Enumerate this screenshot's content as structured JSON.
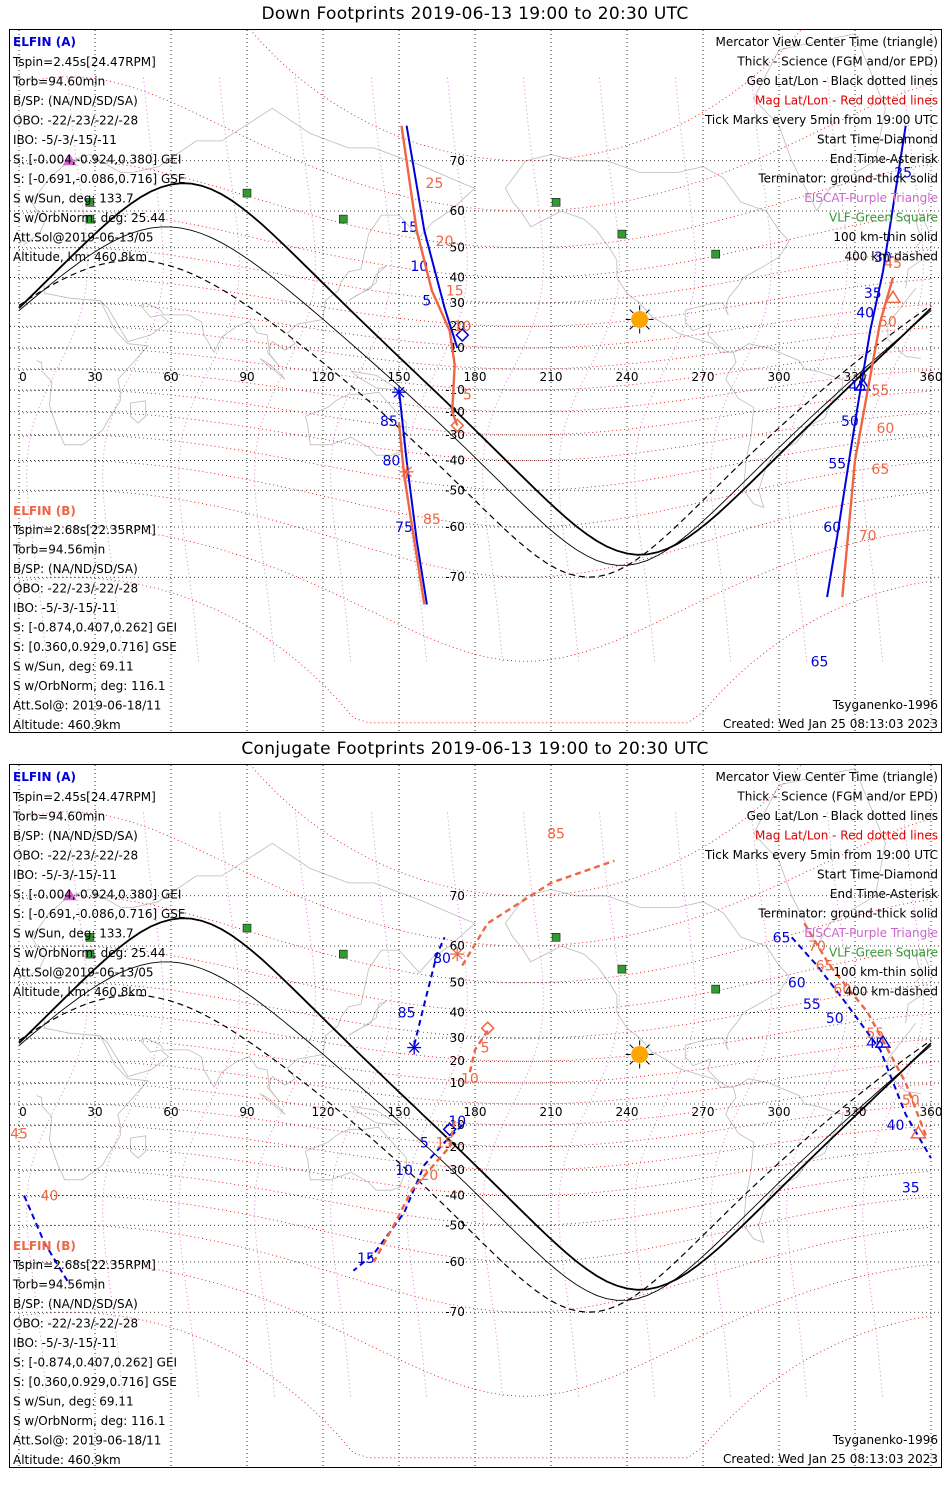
{
  "colors": {
    "elfin_a": "#0000dd",
    "elfin_b": "#ee6644",
    "geo_grid": "#000000",
    "mag_grid": "#dd0000",
    "eiscat": "#cc66cc",
    "vlf": "#339933",
    "sun": "#ffa500",
    "coast": "#bbbbbb"
  },
  "panels": [
    {
      "title": "Down Footprints 2019-06-13 19:00 to 20:30 UTC",
      "elfin_a": {
        "name": "ELFIN (A)",
        "lines": [
          "Tspin=2.45s[24.47RPM]",
          "Torb=94.60min",
          "B/SP: (NA/ND/SD/SA)",
          "OBO: -22/-23/-22/-28",
          "IBO: -5/-3/-15/-11",
          "S: [-0.004,-0.924,0.380] GEI",
          "S: [-0.691,-0.086,0.716] GSE",
          "S w/Sun, deg: 133.7",
          "S w/OrbNorm, deg: 25.44",
          "Att.Sol@2019-06-13/05",
          "Altitude, km: 460.8km"
        ]
      },
      "elfin_b": {
        "name": "ELFIN (B)",
        "lines": [
          "Tspin=2.68s[22.35RPM]",
          "Torb=94.56min",
          "B/SP: (NA/ND/SD/SA)",
          "OBO: -22/-23/-22/-28",
          "IBO: -5/-3/-15/-11",
          "S: [-0.874,0.407,0.262] GEI",
          "S: [0.360,0.929,0.716] GSE",
          "S w/Sun, deg: 69.11",
          "S w/OrbNorm, deg: 116.1",
          "Att.Sol@: 2019-06-18/11",
          "Altitude: 460.9km"
        ]
      },
      "legend": [
        {
          "text": "Mercator View Center Time (triangle)",
          "color": "#000000"
        },
        {
          "text": "Thick - Science (FGM and/or EPD)",
          "color": "#000000"
        },
        {
          "text": "Geo Lat/Lon - Black dotted lines",
          "color": "#000000"
        },
        {
          "text": "Mag Lat/Lon - Red dotted lines",
          "color": "#dd0000"
        },
        {
          "text": "Tick Marks every 5min from 19:00 UTC",
          "color": "#000000"
        },
        {
          "text": "Start Time-Diamond",
          "color": "#000000"
        },
        {
          "text": "End Time-Asterisk",
          "color": "#000000"
        },
        {
          "text": "Terminator: ground-thick solid",
          "color": "#000000"
        },
        {
          "text": "EISCAT-Purple Triangle",
          "color": "#cc66cc"
        },
        {
          "text": "VLF-Green Square",
          "color": "#339933"
        },
        {
          "text": "100 km-thin solid",
          "color": "#000000"
        },
        {
          "text": "400 km-dashed",
          "color": "#000000"
        }
      ],
      "model": "Tsyganenko-1996",
      "created": "Created: Wed Jan 25 08:13:03 2023"
    },
    {
      "title": "Conjugate Footprints 2019-06-13 19:00 to 20:30 UTC",
      "elfin_a": {
        "name": "ELFIN (A)",
        "lines": [
          "Tspin=2.45s[24.47RPM]",
          "Torb=94.60min",
          "B/SP: (NA/ND/SD/SA)",
          "OBO: -22/-23/-22/-28",
          "IBO: -5/-3/-15/-11",
          "S: [-0.004,-0.924,0.380] GEI",
          "S: [-0.691,-0.086,0.716] GSE",
          "S w/Sun, deg: 133.7",
          "S w/OrbNorm, deg: 25.44",
          "Att.Sol@2019-06-13/05",
          "Altitude, km: 460.8km"
        ]
      },
      "elfin_b": {
        "name": "ELFIN (B)",
        "lines": [
          "Tspin=2.68s[22.35RPM]",
          "Torb=94.56min",
          "B/SP: (NA/ND/SD/SA)",
          "OBO: -22/-23/-22/-28",
          "IBO: -5/-3/-15/-11",
          "S: [-0.874,0.407,0.262] GEI",
          "S: [0.360,0.929,0.716] GSE",
          "S w/Sun, deg: 69.11",
          "S w/OrbNorm, deg: 116.1",
          "Att.Sol@: 2019-06-18/11",
          "Altitude: 460.9km"
        ]
      },
      "legend": [
        {
          "text": "Mercator View Center Time (triangle)",
          "color": "#000000"
        },
        {
          "text": "Thick - Science (FGM and/or EPD)",
          "color": "#000000"
        },
        {
          "text": "Geo Lat/Lon - Black dotted lines",
          "color": "#000000"
        },
        {
          "text": "Mag Lat/Lon - Red dotted lines",
          "color": "#dd0000"
        },
        {
          "text": "Tick Marks every 5min from 19:00 UTC",
          "color": "#000000"
        },
        {
          "text": "Start Time-Diamond",
          "color": "#000000"
        },
        {
          "text": "End Time-Asterisk",
          "color": "#000000"
        },
        {
          "text": "Terminator: ground-thick solid",
          "color": "#000000"
        },
        {
          "text": "EISCAT-Purple Triangle",
          "color": "#cc66cc"
        },
        {
          "text": "VLF-Green Square",
          "color": "#339933"
        },
        {
          "text": "100 km-thin solid",
          "color": "#000000"
        },
        {
          "text": "400 km-dashed",
          "color": "#000000"
        }
      ],
      "model": "Tsyganenko-1996",
      "created": "Created: Wed Jan 25 08:13:03 2023"
    }
  ],
  "chart_data": [
    {
      "type": "scatter",
      "title": "Down Footprints 2019-06-13 19:00 to 20:30 UTC",
      "xlim": [
        0,
        360
      ],
      "lon_ticks": [
        0,
        30,
        60,
        90,
        120,
        150,
        180,
        210,
        240,
        270,
        300,
        330,
        360
      ],
      "lat_ticks": [
        70,
        60,
        50,
        40,
        30,
        20,
        10,
        -10,
        -20,
        -30,
        -40,
        -50,
        -60,
        -70
      ],
      "grid": true,
      "series": [
        {
          "name": "ELFIN (A)",
          "segments": [
            {
              "points": [
                [
                  350,
                  75
                ],
                [
                  341,
                  42
                ],
                [
                  336,
                  18
                ],
                [
                  331,
                  -18
                ],
                [
                  328,
                  -38
                ],
                [
                  323,
                  -62
                ],
                [
                  319,
                  -73
                ]
              ]
            },
            {
              "points": [
                [
                  153,
                  75
                ],
                [
                  160,
                  55
                ],
                [
                  168,
                  28
                ],
                [
                  173,
                  10
                ]
              ]
            },
            {
              "points": [
                [
                  150,
                  -10
                ],
                [
                  153,
                  -40
                ],
                [
                  157,
                  -63
                ],
                [
                  161,
                  -74
                ]
              ]
            }
          ],
          "tick_labels": [
            {
              "text": "25",
              "lon": 349,
              "lat": 68
            },
            {
              "text": "30",
              "lon": 341,
              "lat": 47
            },
            {
              "text": "35",
              "lon": 337,
              "lat": 34
            },
            {
              "text": "40",
              "lon": 334,
              "lat": 26
            },
            {
              "text": "45",
              "lon": 331,
              "lat": -8
            },
            {
              "text": "50",
              "lon": 328,
              "lat": -24
            },
            {
              "text": "55",
              "lon": 323,
              "lat": -41
            },
            {
              "text": "60",
              "lon": 321,
              "lat": -60
            },
            {
              "text": "65",
              "lon": 316,
              "lat": -80
            },
            {
              "text": "15",
              "lon": 154,
              "lat": 56
            },
            {
              "text": "10",
              "lon": 158,
              "lat": 44
            },
            {
              "text": "5",
              "lon": 161,
              "lat": 31
            },
            {
              "text": "85",
              "lon": 146,
              "lat": -24
            },
            {
              "text": "80",
              "lon": 147,
              "lat": -40
            },
            {
              "text": "75",
              "lon": 152,
              "lat": -60
            }
          ],
          "start_marker": [
            175,
            16
          ],
          "end_marker": [
            150,
            -11
          ],
          "center_marker": [
            333,
            -8
          ]
        },
        {
          "name": "ELFIN (B)",
          "segments": [
            {
              "points": [
                [
                  345,
                  40
                ],
                [
                  340,
                  22
                ],
                [
                  335,
                  -10
                ],
                [
                  330,
                  -40
                ],
                [
                  325,
                  -73
                ]
              ]
            },
            {
              "points": [
                [
                  151,
                  75
                ],
                [
                  157,
                  55
                ],
                [
                  163,
                  35
                ],
                [
                  170,
                  18
                ],
                [
                  172,
                  2
                ],
                [
                  171,
                  -20
                ],
                [
                  173,
                  -26
                ]
              ]
            },
            {
              "points": [
                [
                  150,
                  -25
                ],
                [
                  152,
                  -45
                ],
                [
                  156,
                  -63
                ],
                [
                  160,
                  -74
                ]
              ]
            }
          ],
          "tick_labels": [
            {
              "text": "25",
              "lon": 164,
              "lat": 66
            },
            {
              "text": "20",
              "lon": 168,
              "lat": 52
            },
            {
              "text": "15",
              "lon": 172,
              "lat": 35
            },
            {
              "text": "10",
              "lon": 175,
              "lat": 20
            },
            {
              "text": "5",
              "lon": 177,
              "lat": -12
            },
            {
              "text": "45",
              "lon": 345,
              "lat": 45
            },
            {
              "text": "50",
              "lon": 343,
              "lat": 22
            },
            {
              "text": "55",
              "lon": 340,
              "lat": -10
            },
            {
              "text": "60",
              "lon": 342,
              "lat": -27
            },
            {
              "text": "65",
              "lon": 340,
              "lat": -43
            },
            {
              "text": "70",
              "lon": 335,
              "lat": -62
            },
            {
              "text": "85",
              "lon": 163,
              "lat": -58
            }
          ],
          "start_marker": [
            173,
            -26
          ],
          "end_marker": [
            153,
            -44
          ],
          "center_marker": [
            345,
            32
          ]
        }
      ]
    },
    {
      "type": "scatter",
      "title": "Conjugate Footprints 2019-06-13 19:00 to 20:30 UTC",
      "xlim": [
        0,
        360
      ],
      "lon_ticks": [
        0,
        30,
        60,
        90,
        120,
        150,
        180,
        210,
        240,
        270,
        300,
        330,
        360
      ],
      "lat_ticks": [
        70,
        60,
        50,
        40,
        30,
        20,
        10,
        -10,
        -20,
        -30,
        -40,
        -50,
        -60,
        -70
      ],
      "grid": true,
      "series": [
        {
          "name": "ELFIN (A)",
          "segments": [
            {
              "points": [
                [
                  156,
                  27
                ],
                [
                  160,
                  43
                ],
                [
                  165,
                  58
                ],
                [
                  168,
                  62
                ]
              ]
            },
            {
              "points": [
                [
                  175,
                  -10
                ],
                [
                  168,
                  -18
                ],
                [
                  160,
                  -28
                ],
                [
                  152,
                  -46
                ],
                [
                  140,
                  -58
                ],
                [
                  132,
                  -62
                ]
              ]
            },
            {
              "points": [
                [
                  305,
                  62
                ],
                [
                  315,
                  55
                ],
                [
                  325,
                  45
                ],
                [
                  340,
                  25
                ],
                [
                  350,
                  -5
                ],
                [
                  360,
                  -25
                ]
              ]
            },
            {
              "points": [
                [
                  2,
                  -40
                ],
                [
                  10,
                  -55
                ],
                [
                  20,
                  -65
                ]
              ]
            }
          ],
          "tick_labels": [
            {
              "text": "85",
              "lon": 153,
              "lat": 40
            },
            {
              "text": "80",
              "lon": 167,
              "lat": 57
            },
            {
              "text": "10",
              "lon": 173,
              "lat": -8
            },
            {
              "text": "5",
              "lon": 160,
              "lat": -18
            },
            {
              "text": "10",
              "lon": 152,
              "lat": -30
            },
            {
              "text": "15",
              "lon": 137,
              "lat": -59
            },
            {
              "text": "65",
              "lon": 301,
              "lat": 62
            },
            {
              "text": "60",
              "lon": 307,
              "lat": 50
            },
            {
              "text": "55",
              "lon": 313,
              "lat": 43
            },
            {
              "text": "50",
              "lon": 322,
              "lat": 38
            },
            {
              "text": "45",
              "lon": 338,
              "lat": 28
            },
            {
              "text": "40",
              "lon": 346,
              "lat": -10
            },
            {
              "text": "35",
              "lon": 352,
              "lat": -37
            }
          ],
          "start_marker": [
            170,
            -12
          ],
          "end_marker": [
            156,
            26
          ],
          "center_marker": [
            341,
            28
          ]
        },
        {
          "name": "ELFIN (B)",
          "segments": [
            {
              "points": [
                [
                  172,
                  -8
                ],
                [
                  170,
                  -20
                ],
                [
                  155,
                  -38
                ],
                [
                  148,
                  -50
                ],
                [
                  140,
                  -60
                ]
              ]
            },
            {
              "points": [
                [
                  178,
                  15
                ],
                [
                  180,
                  25
                ],
                [
                  185,
                  33
                ]
              ]
            },
            {
              "points": [
                [
                  175,
                  55
                ],
                [
                  185,
                  65
                ],
                [
                  210,
                  72
                ],
                [
                  235,
                  75
                ]
              ]
            },
            {
              "points": [
                [
                  310,
                  65
                ],
                [
                  320,
                  55
                ],
                [
                  335,
                  40
                ],
                [
                  350,
                  10
                ],
                [
                  358,
                  -15
                ]
              ]
            }
          ],
          "tick_labels": [
            {
              "text": "85",
              "lon": 212,
              "lat": 78
            },
            {
              "text": "5",
              "lon": 184,
              "lat": 26
            },
            {
              "text": "10",
              "lon": 178,
              "lat": 12
            },
            {
              "text": "15",
              "lon": 168,
              "lat": -18
            },
            {
              "text": "20",
              "lon": 162,
              "lat": -32
            },
            {
              "text": "70",
              "lon": 315,
              "lat": 60
            },
            {
              "text": "65",
              "lon": 318,
              "lat": 55
            },
            {
              "text": "60",
              "lon": 325,
              "lat": 48
            },
            {
              "text": "55",
              "lon": 338,
              "lat": 32
            },
            {
              "text": "50",
              "lon": 352,
              "lat": 2
            },
            {
              "text": "45",
              "lon": 0,
              "lat": -14
            },
            {
              "text": "40",
              "lon": 12,
              "lat": -40
            }
          ],
          "start_marker": [
            185,
            34
          ],
          "end_marker": [
            173,
            58
          ],
          "center_marker": [
            355,
            -14
          ]
        }
      ],
      "landmarks": {
        "eiscat": [
          20,
          70
        ],
        "vlf": [
          [
            28,
            62
          ],
          [
            28,
            58
          ],
          [
            90,
            64
          ],
          [
            128,
            58
          ],
          [
            212,
            62
          ],
          [
            238,
            54
          ],
          [
            275,
            48
          ]
        ],
        "subsolar": [
          245,
          23
        ]
      }
    }
  ]
}
